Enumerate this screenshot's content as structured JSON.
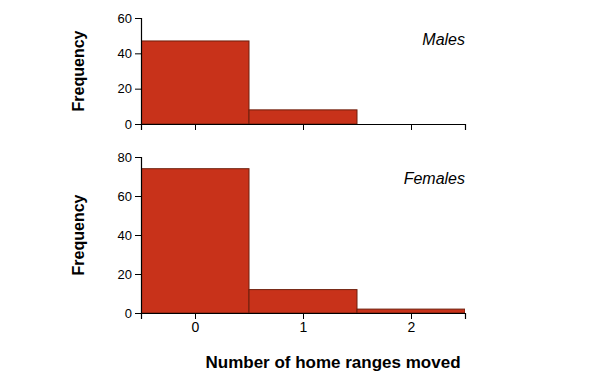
{
  "chart_data": [
    {
      "type": "histogram",
      "title": "Males",
      "ylabel": "Frequency",
      "bins": [
        -0.5,
        0.5,
        1.5,
        2.5
      ],
      "values": [
        47,
        8,
        0
      ],
      "color": "#c8321a",
      "xlim": [
        -0.5,
        2.5
      ],
      "xticks": [
        0,
        1,
        2
      ],
      "ylim": [
        0,
        60
      ],
      "yticks": [
        0,
        20,
        40,
        60
      ],
      "tick_labels": "y"
    },
    {
      "type": "histogram",
      "title": "Females",
      "ylabel": "Frequency",
      "xlabel": "Number of home ranges moved",
      "bins": [
        -0.5,
        0.5,
        1.5,
        2.5
      ],
      "values": [
        74,
        12,
        2
      ],
      "color": "#c8321a",
      "xlim": [
        -0.5,
        2.5
      ],
      "xticks": [
        0,
        1,
        2
      ],
      "ylim": [
        0,
        80
      ],
      "yticks": [
        0,
        20,
        40,
        60,
        80
      ]
    }
  ]
}
